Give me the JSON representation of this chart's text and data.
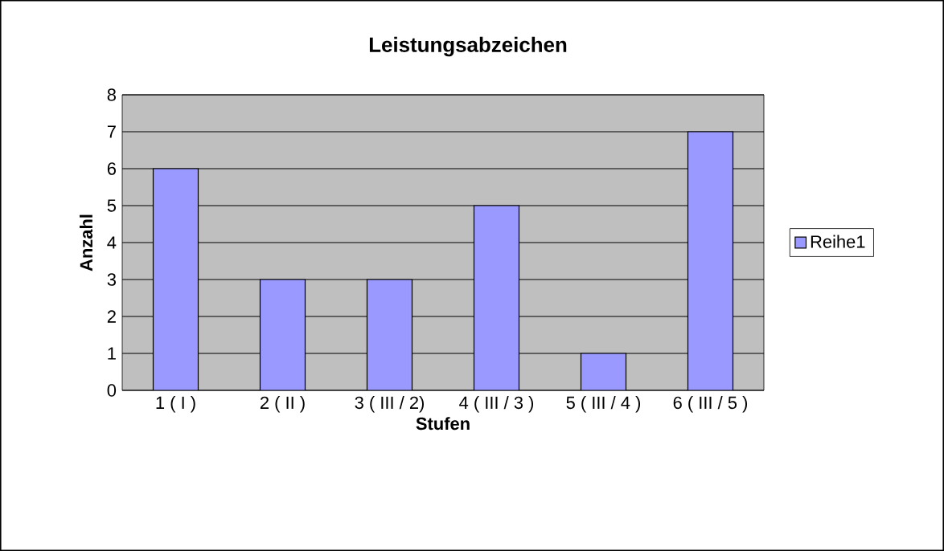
{
  "chart_data": {
    "type": "bar",
    "title": "Leistungsabzeichen",
    "xlabel": "Stufen",
    "ylabel": "Anzahl",
    "categories": [
      "1 ( I )",
      "2 ( II )",
      "3 ( III / 2)",
      "4 ( III / 3 )",
      "5 ( III / 4 )",
      "6 ( III / 5 )"
    ],
    "series": [
      {
        "name": "Reihe1",
        "color": "#9999ff",
        "values": [
          6,
          3,
          3,
          5,
          1,
          7
        ]
      }
    ],
    "ylim": [
      0,
      8
    ],
    "yticks": [
      0,
      1,
      2,
      3,
      4,
      5,
      6,
      7,
      8
    ],
    "grid": "y",
    "legend": "right"
  }
}
